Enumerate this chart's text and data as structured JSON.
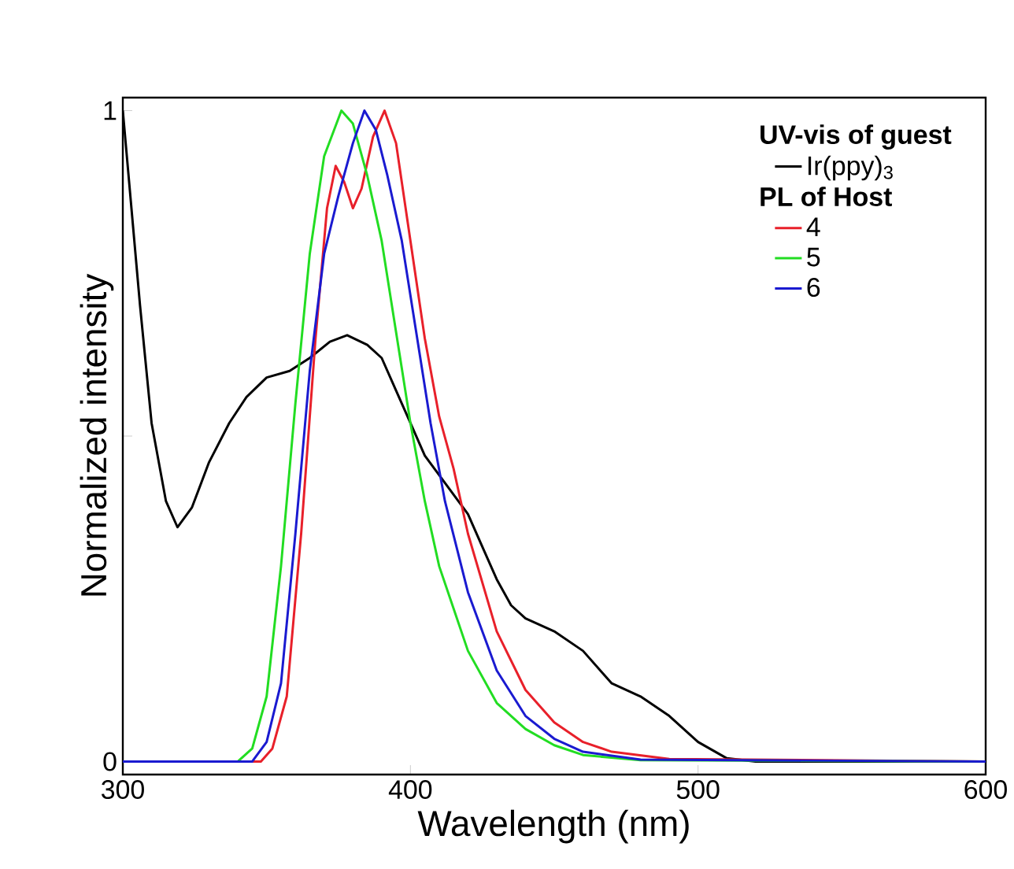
{
  "chart_data": {
    "type": "line",
    "xlabel": "Wavelength (nm)",
    "ylabel": "Normalized intensity",
    "legend_title": "UV-vis of guest",
    "annotations": [
      "PL of Host"
    ],
    "xlim": [
      300,
      600
    ],
    "ylim": [
      -0.02,
      1.02
    ],
    "xticks": [
      300,
      400,
      500,
      600
    ],
    "yticks": [
      0,
      {
        "value": 0.5,
        "label": null
      },
      1
    ],
    "legend": "top right",
    "grid": false,
    "series": [
      {
        "name": "Ir(ppy)$_{3}$",
        "color": "#000000",
        "x": [
          300,
          303,
          306,
          310,
          315,
          319,
          324,
          330,
          337,
          343,
          350,
          358,
          365,
          372,
          378,
          385,
          390,
          395,
          400,
          405,
          410,
          415,
          420,
          425,
          430,
          435,
          440,
          450,
          460,
          470,
          480,
          490,
          500,
          510,
          520,
          600
        ],
        "values": [
          1.0,
          0.85,
          0.7,
          0.52,
          0.4,
          0.36,
          0.39,
          0.46,
          0.52,
          0.56,
          0.59,
          0.6,
          0.62,
          0.645,
          0.655,
          0.64,
          0.62,
          0.57,
          0.52,
          0.47,
          0.44,
          0.41,
          0.38,
          0.33,
          0.28,
          0.24,
          0.22,
          0.2,
          0.17,
          0.12,
          0.1,
          0.07,
          0.03,
          0.005,
          0,
          0
        ]
      },
      {
        "name": "4",
        "color": "#e8202a",
        "x": [
          300,
          348,
          352,
          357,
          362,
          367,
          371,
          374,
          377,
          380,
          383,
          387,
          391,
          395,
          400,
          405,
          410,
          415,
          420,
          430,
          440,
          450,
          460,
          470,
          490,
          600
        ],
        "values": [
          0,
          0,
          0.02,
          0.1,
          0.35,
          0.65,
          0.85,
          0.915,
          0.89,
          0.85,
          0.88,
          0.96,
          1.0,
          0.95,
          0.8,
          0.65,
          0.53,
          0.45,
          0.35,
          0.2,
          0.11,
          0.06,
          0.03,
          0.015,
          0.004,
          0
        ]
      },
      {
        "name": "5",
        "color": "#22dd22",
        "x": [
          300,
          340,
          345,
          350,
          355,
          360,
          365,
          370,
          376,
          380,
          385,
          390,
          395,
          400,
          405,
          410,
          420,
          430,
          440,
          450,
          460,
          480,
          600
        ],
        "values": [
          0,
          0,
          0.02,
          0.1,
          0.3,
          0.55,
          0.78,
          0.93,
          1.0,
          0.98,
          0.9,
          0.8,
          0.66,
          0.52,
          0.4,
          0.3,
          0.17,
          0.09,
          0.05,
          0.025,
          0.01,
          0.002,
          0
        ]
      },
      {
        "name": "6",
        "color": "#1a1ad0",
        "x": [
          300,
          345,
          350,
          355,
          360,
          365,
          370,
          375,
          380,
          384,
          388,
          392,
          397,
          402,
          407,
          412,
          420,
          430,
          440,
          450,
          460,
          480,
          600
        ],
        "values": [
          0,
          0,
          0.03,
          0.12,
          0.35,
          0.6,
          0.78,
          0.87,
          0.95,
          1.0,
          0.97,
          0.9,
          0.8,
          0.66,
          0.52,
          0.4,
          0.26,
          0.14,
          0.07,
          0.035,
          0.015,
          0.003,
          0
        ]
      }
    ]
  }
}
